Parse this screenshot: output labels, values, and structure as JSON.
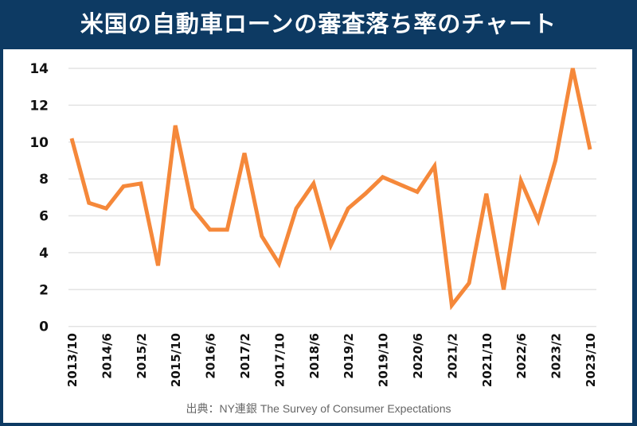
{
  "header": {
    "title": "米国の自動車ローンの審査落ち率のチャート"
  },
  "source": "出典：NY連銀 The Survey of Consumer Expectations",
  "colors": {
    "header_bg": "#0d3a63",
    "line": "#f5883a",
    "grid": "#e3e3e3"
  },
  "chart_data": {
    "type": "line",
    "title": "米国の自動車ローンの審査落ち率のチャート",
    "xlabel": "",
    "ylabel": "",
    "ylim": [
      0,
      14
    ],
    "yticks": [
      "0",
      "2",
      "4",
      "6",
      "8",
      "10",
      "12",
      "14"
    ],
    "xticks": [
      "2013/10",
      "2014/6",
      "2015/2",
      "2015/10",
      "2016/6",
      "2017/2",
      "2017/10",
      "2018/6",
      "2019/2",
      "2019/10",
      "2020/6",
      "2021/2",
      "2021/10",
      "2022/6",
      "2023/2",
      "2023/10"
    ],
    "grid": true,
    "series": [
      {
        "name": "審査落ち率",
        "x": [
          "2013/10",
          "2014/2",
          "2014/6",
          "2014/10",
          "2015/2",
          "2015/6",
          "2015/10",
          "2016/2",
          "2016/6",
          "2016/10",
          "2017/2",
          "2017/6",
          "2017/10",
          "2018/2",
          "2018/6",
          "2018/10",
          "2019/2",
          "2019/6",
          "2019/10",
          "2020/2",
          "2020/6",
          "2020/10",
          "2021/2",
          "2021/6",
          "2021/10",
          "2022/2",
          "2022/6",
          "2022/10",
          "2023/2",
          "2023/6",
          "2023/10"
        ],
        "values": [
          10.2,
          6.7,
          6.4,
          7.6,
          7.75,
          3.3,
          10.9,
          6.4,
          5.25,
          5.25,
          9.4,
          4.9,
          3.4,
          6.4,
          7.75,
          4.4,
          6.4,
          7.2,
          8.1,
          7.7,
          7.3,
          8.7,
          1.15,
          2.35,
          7.2,
          2.0,
          7.9,
          5.75,
          9.0,
          14.0,
          9.6
        ]
      }
    ]
  }
}
